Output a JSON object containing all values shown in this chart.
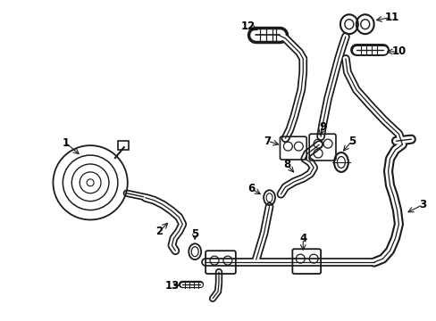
{
  "background_color": "#ffffff",
  "line_color": "#1a1a1a",
  "label_color": "#000000",
  "figsize": [
    4.89,
    3.6
  ],
  "dpi": 100
}
